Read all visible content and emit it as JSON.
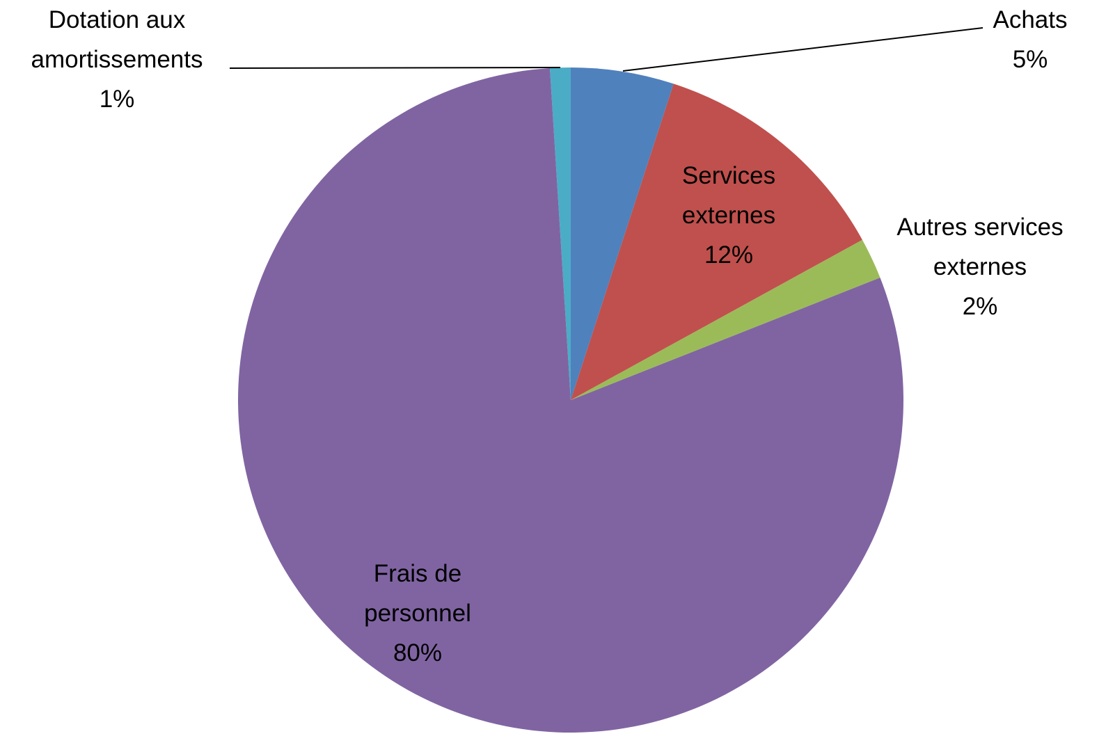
{
  "chart_data": {
    "type": "pie",
    "categories": [
      "Achats",
      "Services externes",
      "Autres services externes",
      "Frais de personnel",
      "Dotation aux amortissements"
    ],
    "values": [
      5,
      12,
      2,
      80,
      1
    ],
    "value_labels": [
      "5%",
      "12%",
      "2%",
      "80%",
      "1%"
    ],
    "colors": [
      "#4f81bd",
      "#c0504d",
      "#9bbb59",
      "#8064a2",
      "#4bacc6"
    ]
  }
}
